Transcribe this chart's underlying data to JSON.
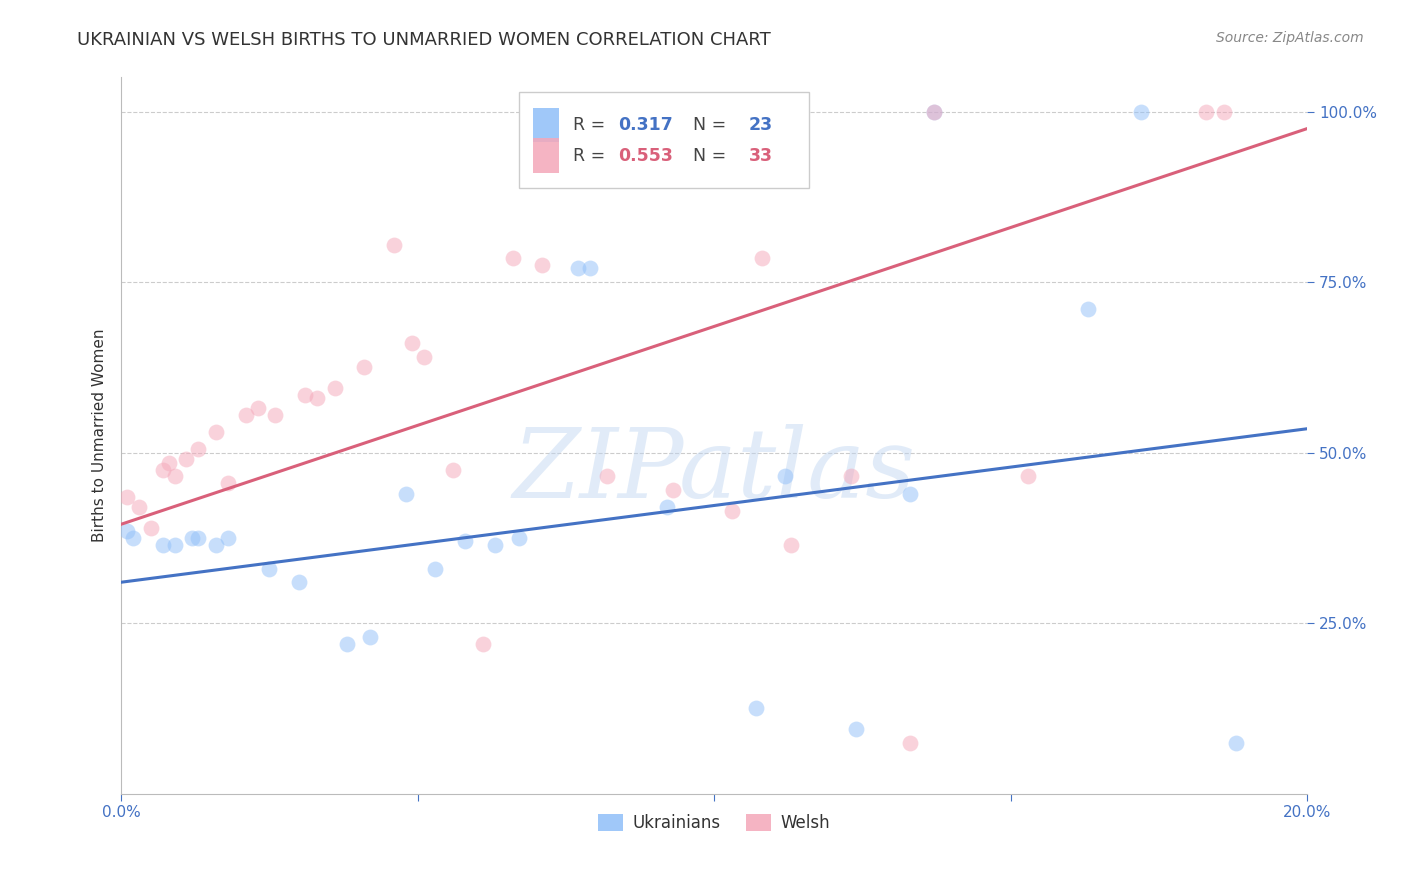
{
  "title": "UKRAINIAN VS WELSH BIRTHS TO UNMARRIED WOMEN CORRELATION CHART",
  "source": "Source: ZipAtlas.com",
  "ylabel": "Births to Unmarried Women",
  "watermark": "ZIPatlas",
  "x_min": 0.0,
  "x_max": 0.2,
  "y_min": 0.0,
  "y_max": 1.05,
  "yticks": [
    0.25,
    0.5,
    0.75,
    1.0
  ],
  "ytick_labels": [
    "25.0%",
    "50.0%",
    "75.0%",
    "100.0%"
  ],
  "xticks": [
    0.0,
    0.05,
    0.1,
    0.15,
    0.2
  ],
  "xtick_labels": [
    "0.0%",
    "",
    "",
    "",
    "20.0%"
  ],
  "blue_color": "#90bff9",
  "pink_color": "#f4a7b9",
  "blue_line_color": "#4472C4",
  "pink_line_color": "#d9607a",
  "blue_scatter": [
    [
      0.001,
      0.385
    ],
    [
      0.002,
      0.375
    ],
    [
      0.007,
      0.365
    ],
    [
      0.009,
      0.365
    ],
    [
      0.012,
      0.375
    ],
    [
      0.013,
      0.375
    ],
    [
      0.016,
      0.365
    ],
    [
      0.018,
      0.375
    ],
    [
      0.025,
      0.33
    ],
    [
      0.03,
      0.31
    ],
    [
      0.038,
      0.22
    ],
    [
      0.042,
      0.23
    ],
    [
      0.048,
      0.44
    ],
    [
      0.053,
      0.33
    ],
    [
      0.058,
      0.37
    ],
    [
      0.063,
      0.365
    ],
    [
      0.067,
      0.375
    ],
    [
      0.077,
      0.77
    ],
    [
      0.079,
      0.77
    ],
    [
      0.092,
      0.42
    ],
    [
      0.107,
      0.125
    ],
    [
      0.124,
      0.095
    ],
    [
      0.112,
      0.465
    ],
    [
      0.133,
      0.44
    ],
    [
      0.163,
      0.71
    ],
    [
      0.188,
      0.075
    ]
  ],
  "pink_scatter": [
    [
      0.001,
      0.435
    ],
    [
      0.003,
      0.42
    ],
    [
      0.005,
      0.39
    ],
    [
      0.007,
      0.475
    ],
    [
      0.008,
      0.485
    ],
    [
      0.009,
      0.465
    ],
    [
      0.011,
      0.49
    ],
    [
      0.013,
      0.505
    ],
    [
      0.016,
      0.53
    ],
    [
      0.018,
      0.455
    ],
    [
      0.021,
      0.555
    ],
    [
      0.023,
      0.565
    ],
    [
      0.026,
      0.555
    ],
    [
      0.031,
      0.585
    ],
    [
      0.033,
      0.58
    ],
    [
      0.036,
      0.595
    ],
    [
      0.041,
      0.625
    ],
    [
      0.046,
      0.805
    ],
    [
      0.049,
      0.66
    ],
    [
      0.051,
      0.64
    ],
    [
      0.056,
      0.475
    ],
    [
      0.061,
      0.22
    ],
    [
      0.066,
      0.785
    ],
    [
      0.071,
      0.775
    ],
    [
      0.082,
      0.465
    ],
    [
      0.093,
      0.445
    ],
    [
      0.103,
      0.415
    ],
    [
      0.108,
      0.785
    ],
    [
      0.113,
      0.365
    ],
    [
      0.123,
      0.465
    ],
    [
      0.133,
      0.075
    ],
    [
      0.153,
      0.465
    ],
    [
      0.183,
      1.0
    ]
  ],
  "blue_top_scatter": [
    [
      0.086,
      1.0
    ],
    [
      0.112,
      1.0
    ],
    [
      0.137,
      1.0
    ],
    [
      0.172,
      1.0
    ]
  ],
  "pink_top_scatter": [
    [
      0.071,
      1.0
    ],
    [
      0.096,
      1.0
    ],
    [
      0.137,
      1.0
    ],
    [
      0.186,
      1.0
    ]
  ],
  "blue_line_x": [
    0.0,
    0.2
  ],
  "blue_line_y": [
    0.31,
    0.535
  ],
  "pink_line_x": [
    0.0,
    0.2
  ],
  "pink_line_y": [
    0.395,
    0.975
  ],
  "marker_size": 130,
  "marker_alpha": 0.5,
  "bg_color": "#ffffff",
  "tick_color": "#4472C4",
  "grid_color": "#cccccc",
  "title_color": "#333333",
  "title_fontsize": 13,
  "label_fontsize": 11,
  "tick_fontsize": 11,
  "source_fontsize": 10
}
